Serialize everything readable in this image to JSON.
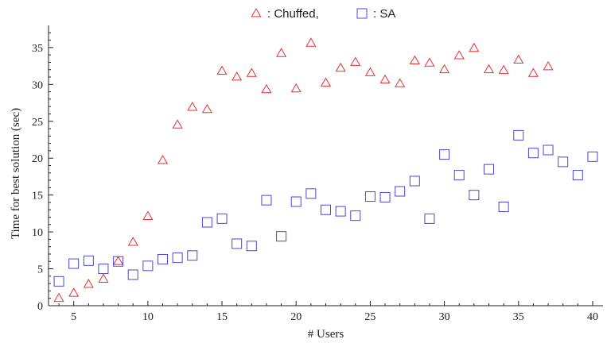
{
  "chart_data": {
    "type": "scatter",
    "xlabel": "# Users",
    "ylabel": "Time for best solution (sec)",
    "xlim": [
      3.3,
      40.7
    ],
    "ylim": [
      0,
      38
    ],
    "xticks": [
      5,
      10,
      15,
      20,
      25,
      30,
      35,
      40
    ],
    "yticks": [
      0,
      5,
      10,
      15,
      20,
      25,
      30,
      35
    ],
    "grid": false,
    "legend_position": "top-center",
    "series": [
      {
        "name": "Chuffed,",
        "legend_label": ": Chuffed,",
        "marker": "triangle",
        "color": "#e83030",
        "points": [
          [
            4,
            1.0
          ],
          [
            5,
            1.7
          ],
          [
            6,
            2.9
          ],
          [
            7,
            3.6
          ],
          [
            8,
            6.0
          ],
          [
            9,
            8.6
          ],
          [
            10,
            12.1
          ],
          [
            11,
            19.7
          ],
          [
            12,
            24.5
          ],
          [
            13,
            26.9
          ],
          [
            14,
            26.6
          ],
          [
            15,
            31.8
          ],
          [
            16,
            31.0
          ],
          [
            17,
            31.5
          ],
          [
            18,
            29.3
          ],
          [
            19,
            34.2
          ],
          [
            20,
            29.4
          ],
          [
            21,
            35.6
          ],
          [
            22,
            30.2
          ],
          [
            23,
            32.2
          ],
          [
            24,
            33.0
          ],
          [
            25,
            31.6
          ],
          [
            26,
            30.6
          ],
          [
            27,
            30.1
          ],
          [
            28,
            33.2
          ],
          [
            29,
            32.9
          ],
          [
            30,
            32.0
          ],
          [
            31,
            33.9
          ],
          [
            32,
            34.9
          ],
          [
            33,
            32.0
          ],
          [
            34,
            31.9
          ],
          [
            35,
            33.3
          ],
          [
            36,
            31.5
          ],
          [
            37,
            32.4
          ]
        ]
      },
      {
        "name": "SA",
        "legend_label": ": SA",
        "marker": "square",
        "color": "#4848dd",
        "points": [
          [
            4,
            3.3
          ],
          [
            5,
            5.7
          ],
          [
            6,
            6.1
          ],
          [
            7,
            5.0
          ],
          [
            8,
            6.0
          ],
          [
            9,
            4.2
          ],
          [
            10,
            5.4
          ],
          [
            11,
            6.3
          ],
          [
            12,
            6.5
          ],
          [
            13,
            6.8
          ],
          [
            14,
            11.3
          ],
          [
            15,
            11.8
          ],
          [
            16,
            8.4
          ],
          [
            17,
            8.1
          ],
          [
            18,
            14.3
          ],
          [
            19,
            9.4
          ],
          [
            20,
            14.1
          ],
          [
            21,
            15.2
          ],
          [
            22,
            13.0
          ],
          [
            23,
            12.8
          ],
          [
            24,
            12.2
          ],
          [
            25,
            14.8
          ],
          [
            26,
            14.7
          ],
          [
            27,
            15.5
          ],
          [
            28,
            16.9
          ],
          [
            29,
            11.8
          ],
          [
            30,
            20.5
          ],
          [
            31,
            17.7
          ],
          [
            32,
            15.0
          ],
          [
            33,
            18.5
          ],
          [
            34,
            13.4
          ],
          [
            35,
            23.1
          ],
          [
            36,
            20.7
          ],
          [
            37,
            21.1
          ],
          [
            38,
            19.5
          ],
          [
            39,
            17.7
          ],
          [
            40,
            20.2
          ]
        ]
      }
    ]
  }
}
